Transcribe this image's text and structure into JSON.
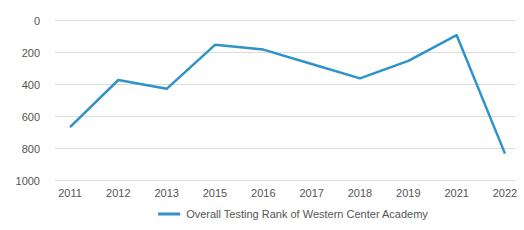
{
  "chart_data": {
    "type": "line",
    "categories": [
      "2011",
      "2012",
      "2013",
      "2015",
      "2016",
      "2017",
      "2018",
      "2019",
      "2021",
      "2022"
    ],
    "series": [
      {
        "name": "Overall Testing Rank of Western Center Academy",
        "color": "#2e93c9",
        "values": [
          670,
          375,
          430,
          155,
          185,
          275,
          365,
          255,
          95,
          835
        ]
      }
    ],
    "ylim": [
      1000,
      0
    ],
    "yticks": [
      0,
      200,
      400,
      600,
      800,
      1000
    ],
    "grid": true,
    "legend": "bottom"
  }
}
